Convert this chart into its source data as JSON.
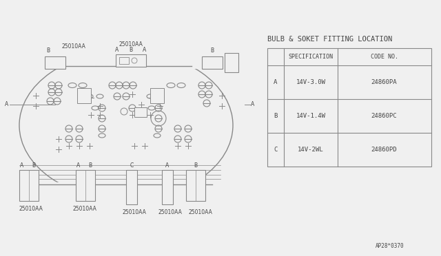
{
  "title": "BULB & SOKET FITTING LOCATION",
  "bg_color": "#f0f0f0",
  "line_color": "#888888",
  "text_color": "#444444",
  "table_header": [
    "",
    "SPECIFICATION",
    "CODE NO."
  ],
  "rows": [
    {
      "label": "A",
      "spec": "14V-3.0W",
      "code": "24860PA"
    },
    {
      "label": "B",
      "spec": "14V-1.4W",
      "code": "24860PC"
    },
    {
      "label": "C",
      "spec": "14V-2WL",
      "code": "24860PD"
    }
  ],
  "watermark": "AP28*0370",
  "font_size_title": 7.5,
  "font_size_body": 6.5,
  "font_size_diagram": 5.5
}
